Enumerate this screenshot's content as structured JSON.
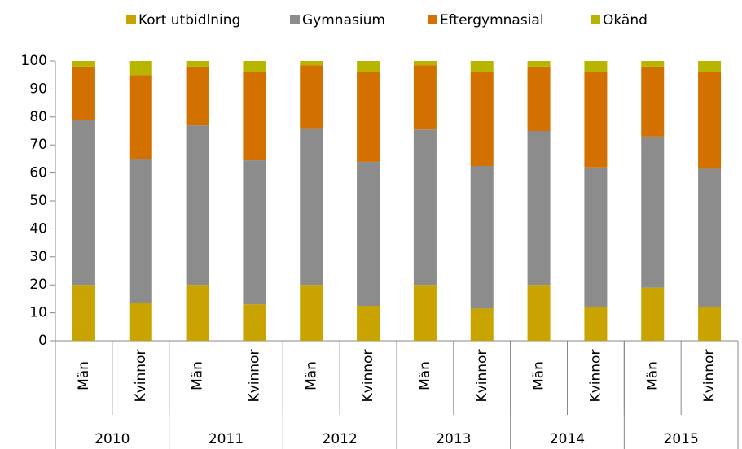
{
  "chart_data": {
    "type": "stacked_bar",
    "categories": [
      "Män",
      "Kvinnor",
      "Män",
      "Kvinnor",
      "Män",
      "Kvinnor",
      "Män",
      "Kvinnor",
      "Män",
      "Kvinnor",
      "Män",
      "Kvinnor"
    ],
    "groups": [
      "2010",
      "2011",
      "2012",
      "2013",
      "2014",
      "2015"
    ],
    "series": [
      {
        "name": "Kort utbidlning",
        "color": "#c9a300",
        "values": [
          20,
          13.5,
          20,
          13,
          20,
          12.5,
          20,
          11.5,
          20,
          12,
          19,
          12
        ]
      },
      {
        "name": "Gymnasium",
        "color": "#8c8c8c",
        "values": [
          59,
          51.5,
          57,
          51.5,
          56,
          51.5,
          55.5,
          51,
          55,
          50,
          54,
          49.5
        ]
      },
      {
        "name": "Eftergymnasial",
        "color": "#d27000",
        "values": [
          19,
          30,
          21,
          31.5,
          22.5,
          32,
          23,
          33.5,
          23,
          34,
          25,
          34.5
        ]
      },
      {
        "name": "Okänd",
        "color": "#b8b500",
        "values": [
          2,
          5,
          2,
          4,
          1.5,
          4,
          1.5,
          4,
          2,
          4,
          2,
          4
        ]
      }
    ],
    "ylim": [
      0,
      100
    ],
    "yticks": [
      0,
      10,
      20,
      30,
      40,
      50,
      60,
      70,
      80,
      90,
      100
    ],
    "legend": "top"
  }
}
